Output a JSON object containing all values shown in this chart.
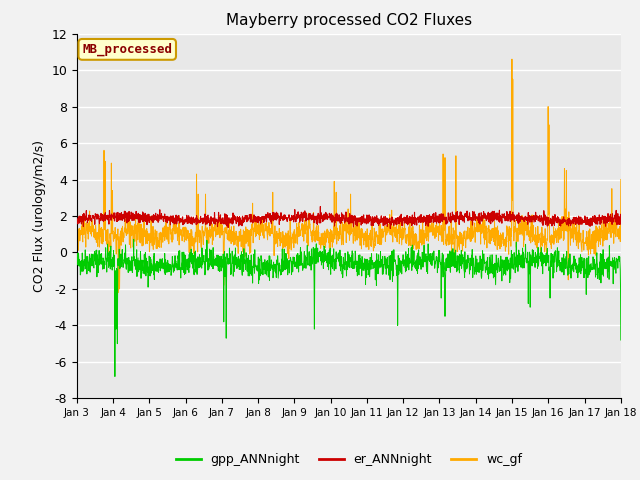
{
  "title": "Mayberry processed CO2 Fluxes",
  "ylabel": "CO2 Flux (urology/m2/s)",
  "ylim": [
    -8,
    12
  ],
  "yticks": [
    -8,
    -6,
    -4,
    -2,
    0,
    2,
    4,
    6,
    8,
    10,
    12
  ],
  "xlim_days": [
    0,
    15
  ],
  "xlabel_ticks": [
    0,
    1,
    2,
    3,
    4,
    5,
    6,
    7,
    8,
    9,
    10,
    11,
    12,
    13,
    14,
    15
  ],
  "xlabel_labels": [
    "Jan 3",
    "Jan 4",
    "Jan 5",
    "Jan 6",
    "Jan 7",
    "Jan 8",
    "Jan 9",
    "Jan 10",
    "Jan 11",
    "Jan 12",
    "Jan 13",
    "Jan 14",
    "Jan 15",
    "Jan 16",
    "Jan 17",
    "Jan 18"
  ],
  "gpp_color": "#00cc00",
  "er_color": "#cc0000",
  "wc_color": "#ffaa00",
  "legend_entries": [
    "gpp_ANNnight",
    "er_ANNnight",
    "wc_gf"
  ],
  "annotation_text": "MB_processed",
  "annotation_color": "#8b0000",
  "annotation_bg": "#ffffcc",
  "annotation_border": "#cc9900",
  "plot_bg": "#e8e8e8",
  "fig_bg": "#f2f2f2",
  "grid_color": "#ffffff",
  "n_points": 2000,
  "seed": 42
}
